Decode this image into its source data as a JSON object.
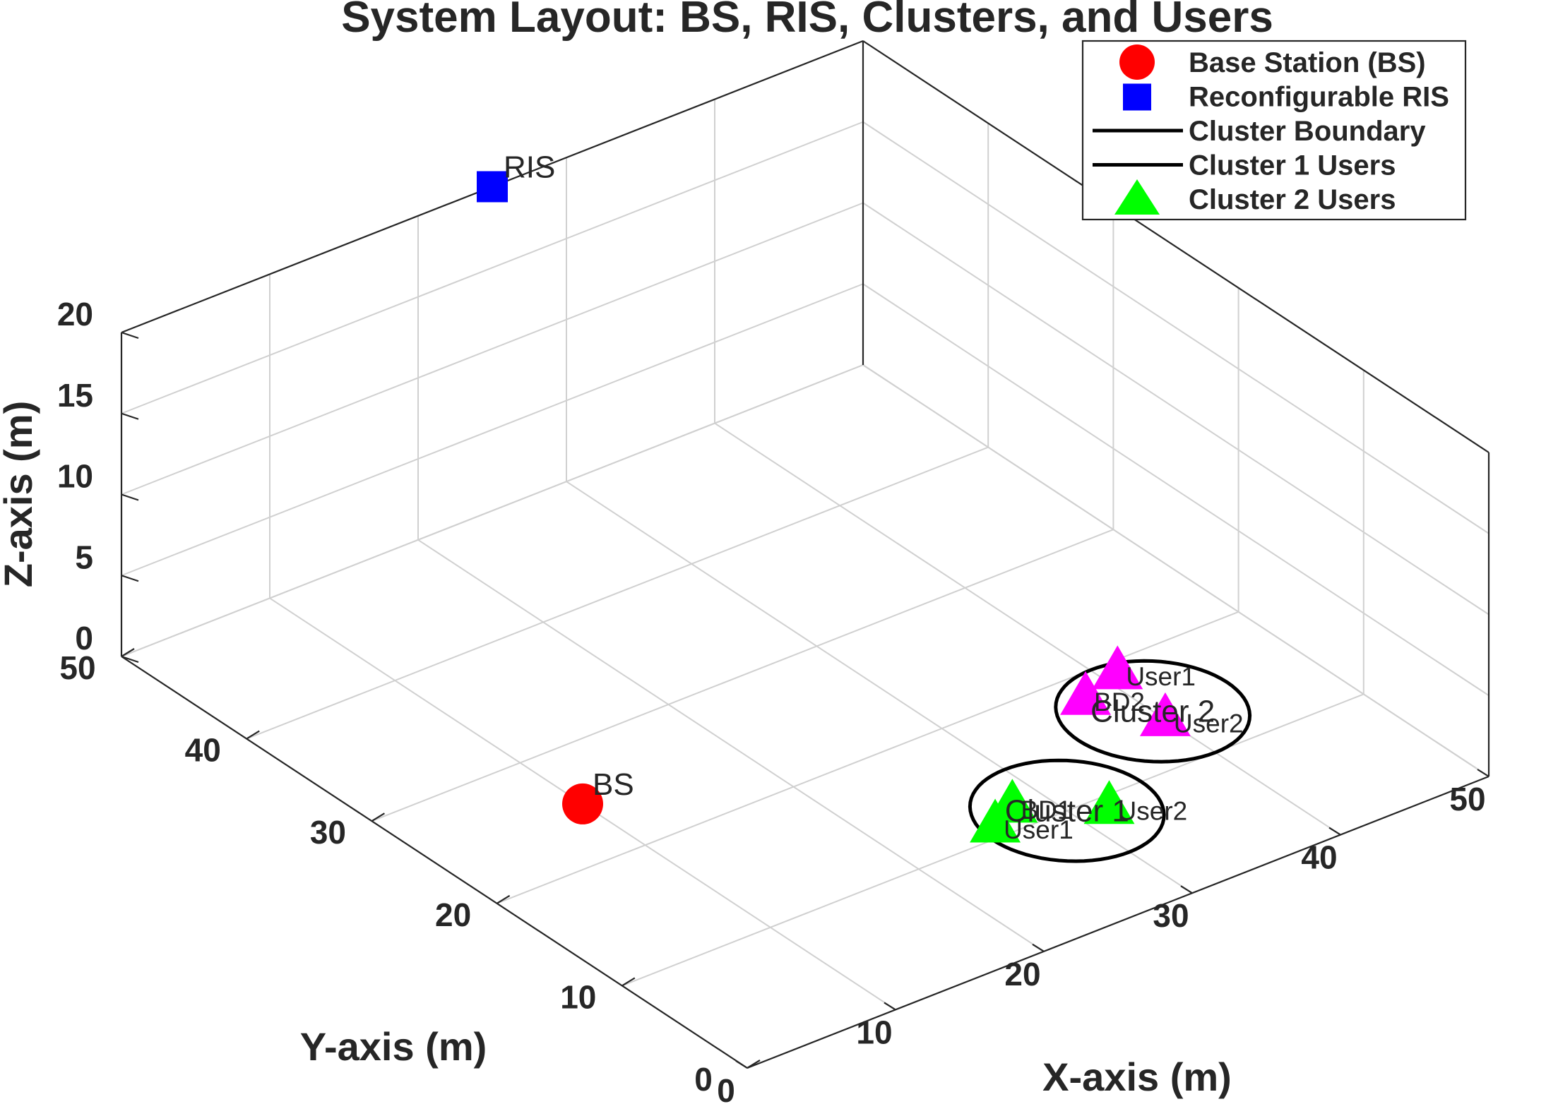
{
  "chart_data": {
    "type": "scatter3d",
    "title": "System Layout: BS, RIS, Clusters, and Users",
    "xlabel": "X-axis (m)",
    "ylabel": "Y-axis (m)",
    "zlabel": "Z-axis (m)",
    "xlim": [
      0,
      50
    ],
    "ylim": [
      0,
      50
    ],
    "zlim": [
      0,
      20
    ],
    "xticks": [
      "0",
      "10",
      "20",
      "30",
      "40",
      "50"
    ],
    "yticks": [
      "0",
      "10",
      "20",
      "30",
      "40",
      "50"
    ],
    "zticks": [
      "0",
      "5",
      "10",
      "15",
      "20"
    ],
    "grid": true,
    "legend_position": "top-right",
    "legend": [
      {
        "label": "Base Station (BS)",
        "marker": "circle",
        "color": "#ff0000"
      },
      {
        "label": "Reconfigurable RIS",
        "marker": "square",
        "color": "#0000ff"
      },
      {
        "label": "Cluster Boundary",
        "marker": "line",
        "color": "#000000"
      },
      {
        "label": "Cluster 1 Users",
        "marker": "line",
        "color": "#000000"
      },
      {
        "label": "Cluster 2 Users",
        "marker": "triangle",
        "color": "#00ff00"
      }
    ],
    "bs": {
      "label": "BS",
      "x": 10,
      "y": 25,
      "z": 0,
      "color": "#ff0000"
    },
    "ris": {
      "label": "RIS",
      "x": 25,
      "y": 50,
      "z": 20,
      "color": "#0000ff"
    },
    "clusters": [
      {
        "label": "Cluster 1",
        "center": [
          30,
          10,
          0
        ],
        "radius": 5,
        "color": "#000000",
        "user_color": "#00ff00",
        "points": [
          {
            "label": "BD1",
            "x": 28,
            "y": 12,
            "z": 0
          },
          {
            "label": "User1",
            "x": 26,
            "y": 11,
            "z": 0
          },
          {
            "label": "User2",
            "x": 32,
            "y": 9,
            "z": 0
          }
        ]
      },
      {
        "label": "Cluster 2",
        "center": [
          40,
          15,
          0
        ],
        "radius": 5,
        "color": "#000000",
        "user_color": "#ff00ff",
        "points": [
          {
            "label": "BD2",
            "x": 38,
            "y": 18,
            "z": 0
          },
          {
            "label": "User1",
            "x": 41,
            "y": 19,
            "z": 0
          },
          {
            "label": "User2",
            "x": 40,
            "y": 14,
            "z": 0
          }
        ]
      }
    ]
  }
}
